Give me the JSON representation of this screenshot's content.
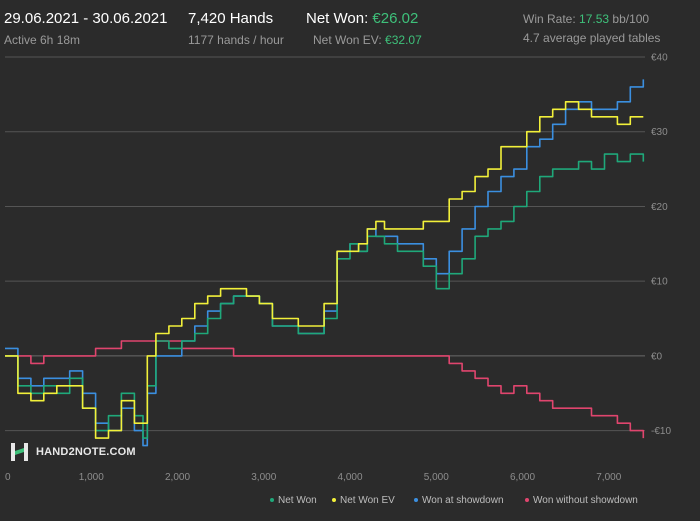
{
  "header": {
    "date_range": "29.06.2021 - 30.06.2021",
    "active_time": "Active 6h 18m",
    "hands": "7,420 Hands",
    "hands_per_hour": "1177 hands / hour",
    "net_won_label": "Net Won:",
    "net_won_value": "€26.02",
    "net_won_ev_label": "Net Won  EV:",
    "net_won_ev_value": "€32.07",
    "win_rate_label": "Win Rate:",
    "win_rate_value": "17.53",
    "win_rate_unit": "bb/100",
    "avg_tables": "4.7 average played tables"
  },
  "logo": {
    "text": "HAND2NOTE.COM"
  },
  "colors": {
    "background": "#2b2b2b",
    "grid": "#555555",
    "net_won": "#1fa87a",
    "net_won_ev": "#f2f03a",
    "showdown": "#3b8fe0",
    "non_showdown": "#e0456e",
    "accent_green": "#3ec07a"
  },
  "chart_data": {
    "type": "line",
    "xlim": [
      0,
      7420
    ],
    "ylim": [
      -15,
      40
    ],
    "x_ticks": [
      0,
      1000,
      2000,
      3000,
      4000,
      5000,
      6000,
      7000
    ],
    "x_tick_labels": [
      "0",
      "1,000",
      "2,000",
      "3,000",
      "4,000",
      "5,000",
      "6,000",
      "7,000"
    ],
    "y_ticks": [
      -10,
      0,
      10,
      20,
      30,
      40
    ],
    "y_tick_labels": [
      "-€10",
      "€0",
      "€10",
      "€20",
      "€30",
      "€40"
    ],
    "grid": true,
    "legend_position": "bottom-right",
    "x": [
      0,
      150,
      300,
      450,
      600,
      750,
      900,
      1050,
      1200,
      1350,
      1500,
      1600,
      1650,
      1750,
      1900,
      2050,
      2200,
      2350,
      2500,
      2650,
      2800,
      2950,
      3100,
      3250,
      3400,
      3550,
      3700,
      3850,
      4000,
      4100,
      4200,
      4300,
      4400,
      4550,
      4700,
      4850,
      5000,
      5150,
      5300,
      5450,
      5600,
      5750,
      5900,
      6050,
      6200,
      6350,
      6500,
      6650,
      6800,
      6950,
      7100,
      7250,
      7400
    ],
    "series": [
      {
        "name": "Net Won",
        "color_key": "net_won",
        "values": [
          0,
          -4,
          -5,
          -4,
          -5,
          -3,
          -7,
          -10,
          -8,
          -5,
          -8,
          -11,
          -4,
          2,
          1,
          2,
          3,
          5,
          7,
          8,
          8,
          7,
          4,
          4,
          3,
          3,
          5,
          13,
          15,
          14,
          16,
          16,
          15,
          14,
          14,
          12,
          9,
          11,
          13,
          16,
          17,
          18,
          20,
          22,
          24,
          25,
          25,
          26,
          25,
          27,
          26,
          27,
          26
        ]
      },
      {
        "name": "Net Won  EV",
        "color_key": "net_won_ev",
        "values": [
          0,
          -5,
          -6,
          -5,
          -4,
          -4,
          -7,
          -11,
          -10,
          -6,
          -9,
          -9,
          0,
          3,
          4,
          5,
          7,
          8,
          9,
          9,
          8,
          7,
          5,
          5,
          4,
          4,
          7,
          14,
          14,
          15,
          17,
          18,
          17,
          17,
          17,
          18,
          18,
          21,
          22,
          24,
          25,
          28,
          28,
          30,
          32,
          33,
          34,
          33,
          32,
          32,
          31,
          32,
          32
        ]
      },
      {
        "name": "Won at showdown",
        "color_key": "showdown",
        "values": [
          1,
          -3,
          -4,
          -3,
          -3,
          -2,
          -5,
          -9,
          -10,
          -7,
          -10,
          -12,
          -5,
          0,
          0,
          2,
          4,
          6,
          7,
          8,
          8,
          7,
          4,
          4,
          3,
          3,
          6,
          14,
          15,
          14,
          17,
          16,
          16,
          15,
          15,
          13,
          11,
          14,
          17,
          20,
          22,
          24,
          25,
          28,
          29,
          31,
          33,
          34,
          33,
          33,
          34,
          36,
          37
        ]
      },
      {
        "name": "Won without showdown",
        "color_key": "non_showdown",
        "values": [
          0,
          0,
          -1,
          0,
          0,
          0,
          0,
          1,
          1,
          2,
          2,
          2,
          2,
          2,
          2,
          1,
          1,
          1,
          1,
          0,
          0,
          0,
          0,
          0,
          0,
          0,
          0,
          0,
          0,
          0,
          0,
          0,
          0,
          0,
          0,
          0,
          0,
          -1,
          -2,
          -3,
          -4,
          -5,
          -4,
          -5,
          -6,
          -7,
          -7,
          -7,
          -8,
          -8,
          -9,
          -10,
          -11
        ]
      }
    ]
  }
}
